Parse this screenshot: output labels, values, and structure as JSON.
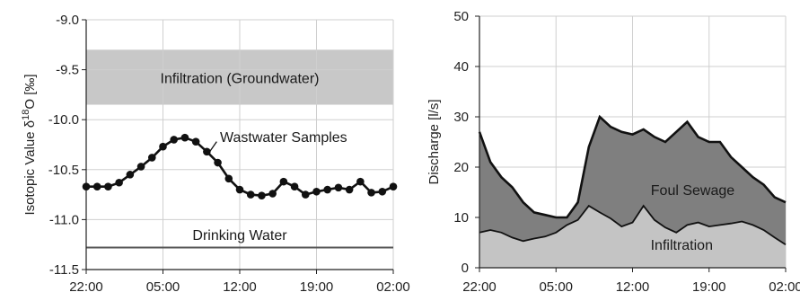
{
  "chart_data": [
    {
      "type": "line",
      "ylabel": "Isotopic Value δ18O [‰]",
      "ylabel_parts": {
        "prefix": "Isotopic Value δ",
        "sup": "18",
        "suffix": "O [‰]"
      },
      "xlabel": "",
      "x_ticks": [
        "22:00",
        "05:00",
        "12:00",
        "19:00",
        "02:00"
      ],
      "ylim": [
        -11.5,
        -9.0
      ],
      "y_ticks": [
        "-9.0",
        "-9.5",
        "-10.0",
        "-10.5",
        "-11.0",
        "-11.5"
      ],
      "grid": true,
      "x_unit": "hours after 22:00",
      "series": [
        {
          "name": "Wastwater Samples",
          "x": [
            0,
            1,
            2,
            3,
            4,
            5,
            6,
            7,
            8,
            9,
            10,
            11,
            12,
            13,
            14,
            15,
            16,
            17,
            18,
            19,
            20,
            21,
            22,
            23,
            24,
            25,
            26,
            27,
            28
          ],
          "values": [
            -10.67,
            -10.67,
            -10.67,
            -10.63,
            -10.55,
            -10.47,
            -10.38,
            -10.27,
            -10.2,
            -10.18,
            -10.22,
            -10.32,
            -10.43,
            -10.59,
            -10.7,
            -10.75,
            -10.76,
            -10.74,
            -10.62,
            -10.67,
            -10.75,
            -10.72,
            -10.7,
            -10.68,
            -10.7,
            -10.62,
            -10.73,
            -10.72,
            -10.67
          ],
          "annotation": "Wastwater Samples"
        }
      ],
      "bands": [
        {
          "label": "Infiltration (Groundwater)",
          "y_from": -9.85,
          "y_to": -9.3,
          "color": "#c8c8c8"
        }
      ],
      "reference_lines": [
        {
          "label": "Drinking Water",
          "y": -11.28
        }
      ]
    },
    {
      "type": "area",
      "ylabel": "Discharge [l/s]",
      "xlabel": "",
      "x_ticks": [
        "22:00",
        "05:00",
        "12:00",
        "19:00",
        "02:00"
      ],
      "ylim": [
        0,
        50
      ],
      "y_ticks": [
        "0",
        "10",
        "20",
        "30",
        "40",
        "50"
      ],
      "grid": true,
      "x_unit": "hours after 22:00",
      "series": [
        {
          "name": "Infiltration",
          "x": [
            0,
            1,
            2,
            3,
            4,
            5,
            6,
            7,
            8,
            9,
            10,
            11,
            12,
            13,
            14,
            15,
            16,
            17,
            18,
            19,
            20,
            21,
            22,
            23,
            24,
            25,
            26,
            27,
            28
          ],
          "values": [
            7,
            7.5,
            7,
            6,
            5.3,
            5.8,
            6.2,
            7,
            8.5,
            9.5,
            12.3,
            11,
            9.8,
            8.2,
            9,
            12.3,
            9.5,
            8,
            7,
            8.5,
            9,
            8.2,
            8.5,
            8.8,
            9.2,
            8.5,
            7.5,
            6,
            4.6
          ],
          "color": "#c4c4c4"
        },
        {
          "name": "Foul Sewage",
          "x": [
            0,
            1,
            2,
            3,
            4,
            5,
            6,
            7,
            8,
            9,
            10,
            11,
            12,
            13,
            14,
            15,
            16,
            17,
            18,
            19,
            20,
            21,
            22,
            23,
            24,
            25,
            26,
            27,
            28
          ],
          "total": [
            27,
            21,
            18,
            16,
            13,
            11,
            10.5,
            10,
            10,
            13,
            24,
            30,
            28,
            27,
            26.5,
            27.5,
            26,
            25,
            27,
            29,
            26,
            25,
            25,
            22,
            20,
            18,
            16.5,
            14,
            13
          ],
          "color": "#7f7f7f"
        }
      ],
      "annotations": [
        "Foul Sewage",
        "Infiltration"
      ]
    }
  ]
}
